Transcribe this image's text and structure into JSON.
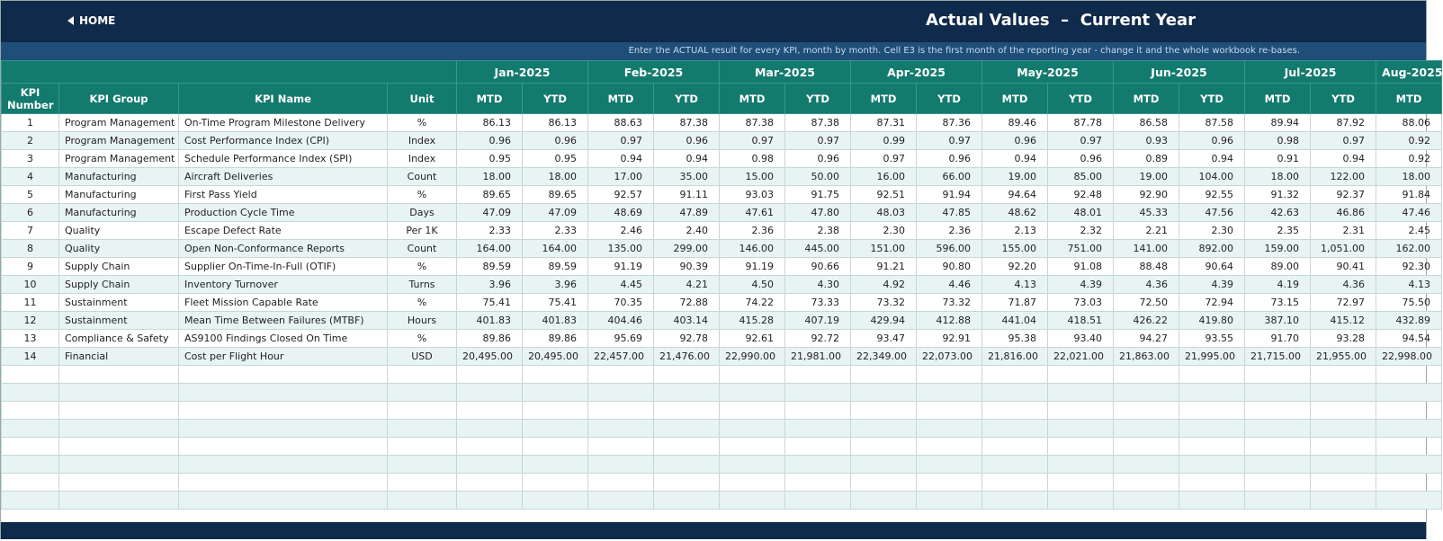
{
  "header": {
    "home": "HOME",
    "title": "Actual Values  –  Current Year",
    "note": "Enter the ACTUAL result for every KPI, month by month. Cell E3 is the first month of the reporting year - change it and the whole workbook re-bases."
  },
  "table": {
    "columns": [
      "KPI Number",
      "KPI Group",
      "KPI Name",
      "Unit"
    ],
    "months": [
      "Jan-2025",
      "Feb-2025",
      "Mar-2025",
      "Apr-2025",
      "May-2025",
      "Jun-2025",
      "Jul-2025",
      "Aug-2025"
    ],
    "sub_headers": [
      "MTD",
      "YTD"
    ],
    "rows": [
      [
        "1",
        "Program Management",
        "On-Time Program Milestone Delivery",
        "%",
        "86.13",
        "86.13",
        "88.63",
        "87.38",
        "87.38",
        "87.38",
        "87.31",
        "87.36",
        "89.46",
        "87.78",
        "86.58",
        "87.58",
        "89.94",
        "87.92",
        "88.06"
      ],
      [
        "2",
        "Program Management",
        "Cost Performance Index (CPI)",
        "Index",
        "0.96",
        "0.96",
        "0.97",
        "0.96",
        "0.97",
        "0.97",
        "0.99",
        "0.97",
        "0.96",
        "0.97",
        "0.93",
        "0.96",
        "0.98",
        "0.97",
        "0.92"
      ],
      [
        "3",
        "Program Management",
        "Schedule Performance Index (SPI)",
        "Index",
        "0.95",
        "0.95",
        "0.94",
        "0.94",
        "0.98",
        "0.96",
        "0.97",
        "0.96",
        "0.94",
        "0.96",
        "0.89",
        "0.94",
        "0.91",
        "0.94",
        "0.92"
      ],
      [
        "4",
        "Manufacturing",
        "Aircraft Deliveries",
        "Count",
        "18.00",
        "18.00",
        "17.00",
        "35.00",
        "15.00",
        "50.00",
        "16.00",
        "66.00",
        "19.00",
        "85.00",
        "19.00",
        "104.00",
        "18.00",
        "122.00",
        "18.00"
      ],
      [
        "5",
        "Manufacturing",
        "First Pass Yield",
        "%",
        "89.65",
        "89.65",
        "92.57",
        "91.11",
        "93.03",
        "91.75",
        "92.51",
        "91.94",
        "94.64",
        "92.48",
        "92.90",
        "92.55",
        "91.32",
        "92.37",
        "91.84"
      ],
      [
        "6",
        "Manufacturing",
        "Production Cycle Time",
        "Days",
        "47.09",
        "47.09",
        "48.69",
        "47.89",
        "47.61",
        "47.80",
        "48.03",
        "47.85",
        "48.62",
        "48.01",
        "45.33",
        "47.56",
        "42.63",
        "46.86",
        "47.46"
      ],
      [
        "7",
        "Quality",
        "Escape Defect Rate",
        "Per 1K",
        "2.33",
        "2.33",
        "2.46",
        "2.40",
        "2.36",
        "2.38",
        "2.30",
        "2.36",
        "2.13",
        "2.32",
        "2.21",
        "2.30",
        "2.35",
        "2.31",
        "2.45"
      ],
      [
        "8",
        "Quality",
        "Open Non-Conformance Reports",
        "Count",
        "164.00",
        "164.00",
        "135.00",
        "299.00",
        "146.00",
        "445.00",
        "151.00",
        "596.00",
        "155.00",
        "751.00",
        "141.00",
        "892.00",
        "159.00",
        "1,051.00",
        "162.00"
      ],
      [
        "9",
        "Supply Chain",
        "Supplier On-Time-In-Full (OTIF)",
        "%",
        "89.59",
        "89.59",
        "91.19",
        "90.39",
        "91.19",
        "90.66",
        "91.21",
        "90.80",
        "92.20",
        "91.08",
        "88.48",
        "90.64",
        "89.00",
        "90.41",
        "92.30"
      ],
      [
        "10",
        "Supply Chain",
        "Inventory Turnover",
        "Turns",
        "3.96",
        "3.96",
        "4.45",
        "4.21",
        "4.50",
        "4.30",
        "4.92",
        "4.46",
        "4.13",
        "4.39",
        "4.36",
        "4.39",
        "4.19",
        "4.36",
        "4.13"
      ],
      [
        "11",
        "Sustainment",
        "Fleet Mission Capable Rate",
        "%",
        "75.41",
        "75.41",
        "70.35",
        "72.88",
        "74.22",
        "73.33",
        "73.32",
        "73.32",
        "71.87",
        "73.03",
        "72.50",
        "72.94",
        "73.15",
        "72.97",
        "75.50"
      ],
      [
        "12",
        "Sustainment",
        "Mean Time Between Failures (MTBF)",
        "Hours",
        "401.83",
        "401.83",
        "404.46",
        "403.14",
        "415.28",
        "407.19",
        "429.94",
        "412.88",
        "441.04",
        "418.51",
        "426.22",
        "419.80",
        "387.10",
        "415.12",
        "432.89"
      ],
      [
        "13",
        "Compliance & Safety",
        "AS9100 Findings Closed On Time",
        "%",
        "89.86",
        "89.86",
        "95.69",
        "92.78",
        "92.61",
        "92.72",
        "93.47",
        "92.91",
        "95.38",
        "93.40",
        "94.27",
        "93.55",
        "91.70",
        "93.28",
        "94.54"
      ],
      [
        "14",
        "Financial",
        "Cost per Flight Hour",
        "USD",
        "20,495.00",
        "20,495.00",
        "22,457.00",
        "21,476.00",
        "22,990.00",
        "21,981.00",
        "22,349.00",
        "22,073.00",
        "21,816.00",
        "22,021.00",
        "21,863.00",
        "21,995.00",
        "21,715.00",
        "21,955.00",
        "22,998.00"
      ]
    ]
  }
}
